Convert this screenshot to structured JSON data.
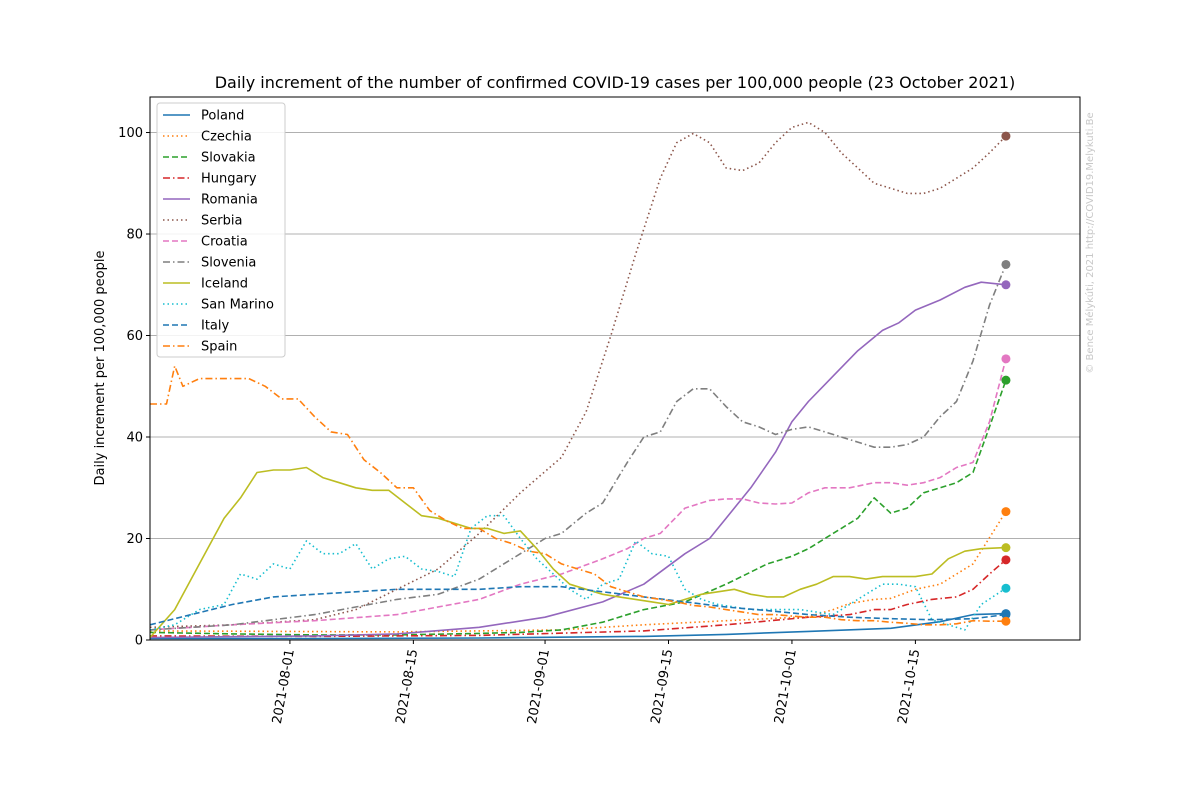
{
  "chart_data": {
    "type": "line",
    "title": "Daily increment of the number of confirmed COVID-19 cases per 100,000 people (23 October 2021)",
    "xlabel": "",
    "ylabel": "Daily increment per 100,000 people",
    "watermark": "© Bence Mélykúti, 2021  http://COVID19.Melykuti.Be",
    "ylim": [
      0,
      107
    ],
    "yticks": [
      0,
      20,
      40,
      60,
      80,
      100
    ],
    "ytick_labels": [
      "0",
      "20",
      "40",
      "60",
      "80",
      "100"
    ],
    "x_start": "2021-07-15",
    "x_end": "2021-10-23",
    "x_range_days": [
      0,
      113
    ],
    "xticks": [
      17,
      32,
      48,
      63,
      78,
      93
    ],
    "xtick_labels": [
      "2021-08-01",
      "2021-08-15",
      "2021-09-01",
      "2021-09-15",
      "2021-10-01",
      "2021-10-15"
    ],
    "grid": "horizontal",
    "legend_position": "upper-left",
    "series": [
      {
        "name": "Poland",
        "color": "#1f77b4",
        "style": "solid",
        "x": [
          0,
          20,
          40,
          60,
          70,
          80,
          90,
          96,
          100,
          104
        ],
        "values": [
          0.3,
          0.3,
          0.4,
          0.7,
          1.1,
          1.7,
          2.3,
          3.6,
          5.0,
          5.2
        ]
      },
      {
        "name": "Czechia",
        "color": "#ff7f0e",
        "style": "dotted",
        "x": [
          0,
          30,
          50,
          60,
          70,
          80,
          83,
          85,
          88,
          90,
          93,
          96,
          100,
          104
        ],
        "values": [
          1.8,
          1.6,
          2.0,
          3.0,
          3.8,
          4.6,
          6.0,
          7.2,
          8.0,
          8.2,
          10.0,
          11.0,
          15.0,
          25.3
        ]
      },
      {
        "name": "Slovakia",
        "color": "#2ca02c",
        "style": "dashed",
        "x": [
          0,
          10,
          20,
          30,
          40,
          45,
          50,
          55,
          60,
          65,
          70,
          75,
          78,
          80,
          82,
          84,
          86,
          88,
          90,
          92,
          94,
          96,
          98,
          100,
          102,
          104
        ],
        "values": [
          1.5,
          1.2,
          1.0,
          1.0,
          1.3,
          1.5,
          2.0,
          3.5,
          6.0,
          7.5,
          11.0,
          15.0,
          16.5,
          18.0,
          20.0,
          22.0,
          24.0,
          28.0,
          25.0,
          26.0,
          29.0,
          30.0,
          31.0,
          33.0,
          42.0,
          51.2
        ]
      },
      {
        "name": "Hungary",
        "color": "#d62728",
        "style": "dashdot",
        "x": [
          0,
          20,
          40,
          60,
          70,
          80,
          85,
          88,
          90,
          92,
          95,
          98,
          100,
          102,
          104
        ],
        "values": [
          0.8,
          0.7,
          0.9,
          1.8,
          3.0,
          4.5,
          5.0,
          6.0,
          6.0,
          7.0,
          8.0,
          8.5,
          10.0,
          13.0,
          15.8
        ]
      },
      {
        "name": "Romania",
        "color": "#9467bd",
        "style": "solid",
        "x": [
          0,
          20,
          30,
          40,
          48,
          55,
          60,
          65,
          68,
          70,
          73,
          76,
          78,
          80,
          83,
          86,
          89,
          91,
          93,
          96,
          99,
          101,
          104
        ],
        "values": [
          0.5,
          0.8,
          1.2,
          2.5,
          4.5,
          7.5,
          11.0,
          17.0,
          20.0,
          24.0,
          30.0,
          37.0,
          43.0,
          47.0,
          52.0,
          57.0,
          61.0,
          62.5,
          65.0,
          67.0,
          69.5,
          70.5,
          70.0
        ]
      },
      {
        "name": "Serbia",
        "color": "#8c564b",
        "style": "dotted",
        "x": [
          0,
          10,
          20,
          25,
          30,
          35,
          40,
          45,
          50,
          53,
          56,
          59,
          62,
          64,
          66,
          68,
          70,
          72,
          74,
          76,
          78,
          80,
          82,
          84,
          86,
          88,
          90,
          92,
          94,
          96,
          98,
          100,
          102,
          104
        ],
        "values": [
          2.5,
          3.0,
          4.0,
          6.0,
          10.0,
          14.0,
          21.0,
          29.0,
          36.0,
          45.0,
          60.0,
          76.0,
          91.0,
          98.0,
          99.8,
          98.0,
          93.0,
          92.5,
          94.0,
          98.0,
          101.0,
          102.0,
          100.0,
          96.0,
          93.0,
          90.0,
          89.0,
          88.0,
          88.0,
          89.0,
          91.0,
          93.0,
          96.0,
          99.3
        ]
      },
      {
        "name": "Croatia",
        "color": "#e377c2",
        "style": "dashed",
        "x": [
          0,
          10,
          20,
          30,
          40,
          45,
          50,
          55,
          58,
          60,
          62,
          65,
          68,
          70,
          72,
          74,
          76,
          78,
          80,
          82,
          85,
          88,
          90,
          92,
          94,
          96,
          98,
          100,
          102,
          104
        ],
        "values": [
          2.0,
          3.0,
          3.8,
          5.0,
          8.0,
          11.0,
          13.0,
          16.0,
          18.0,
          20.0,
          21.0,
          26.0,
          27.5,
          27.8,
          27.8,
          27.0,
          26.8,
          27.0,
          29.0,
          30.0,
          30.0,
          31.0,
          31.0,
          30.5,
          31.0,
          32.0,
          34.0,
          35.0,
          43.0,
          55.4
        ]
      },
      {
        "name": "Slovenia",
        "color": "#7f7f7f",
        "style": "dashdot",
        "x": [
          0,
          10,
          20,
          30,
          35,
          40,
          45,
          48,
          50,
          53,
          55,
          58,
          60,
          62,
          64,
          66,
          68,
          70,
          72,
          74,
          76,
          78,
          80,
          82,
          84,
          86,
          88,
          90,
          92,
          94,
          96,
          98,
          100,
          102,
          104
        ],
        "values": [
          2.0,
          3.0,
          5.0,
          8.0,
          9.0,
          12.0,
          17.0,
          20.0,
          21.0,
          25.0,
          27.0,
          35.0,
          40.0,
          41.0,
          47.0,
          49.5,
          49.5,
          46.0,
          43.0,
          42.0,
          40.5,
          41.5,
          42.0,
          41.0,
          40.0,
          39.0,
          38.0,
          38.0,
          38.5,
          40.0,
          44.0,
          47.0,
          55.0,
          66.0,
          74.0
        ]
      },
      {
        "name": "Iceland",
        "color": "#bcbd22",
        "style": "solid",
        "x": [
          0,
          3,
          6,
          9,
          11,
          13,
          15,
          17,
          19,
          21,
          23,
          25,
          27,
          29,
          31,
          33,
          35,
          37,
          39,
          41,
          43,
          45,
          47,
          49,
          51,
          53,
          55,
          57,
          59,
          61,
          63,
          65,
          67,
          69,
          71,
          73,
          75,
          77,
          79,
          81,
          83,
          85,
          87,
          89,
          91,
          93,
          95,
          97,
          99,
          101,
          104
        ],
        "values": [
          0.5,
          6.0,
          15.0,
          24.0,
          28.0,
          33.0,
          33.5,
          33.5,
          34.0,
          32.0,
          31.0,
          30.0,
          29.5,
          29.5,
          27.0,
          24.5,
          24.0,
          23.0,
          22.0,
          22.0,
          21.0,
          21.5,
          18.0,
          14.0,
          11.0,
          10.0,
          9.0,
          8.5,
          8.0,
          7.5,
          7.0,
          8.0,
          9.0,
          9.5,
          10.0,
          9.0,
          8.5,
          8.5,
          10.0,
          11.0,
          12.5,
          12.5,
          12.0,
          12.5,
          12.5,
          12.5,
          13.0,
          16.0,
          17.5,
          18.0,
          18.2
        ]
      },
      {
        "name": "San Marino",
        "color": "#17becf",
        "style": "dotted",
        "x": [
          0,
          3,
          6,
          9,
          11,
          13,
          15,
          17,
          19,
          21,
          23,
          25,
          27,
          29,
          31,
          33,
          35,
          37,
          39,
          41,
          43,
          45,
          47,
          49,
          51,
          53,
          55,
          57,
          59,
          61,
          63,
          65,
          67,
          69,
          71,
          73,
          75,
          77,
          79,
          81,
          83,
          85,
          87,
          89,
          91,
          93,
          95,
          97,
          99,
          101,
          104
        ],
        "values": [
          2.0,
          3.0,
          6.0,
          7.0,
          13.0,
          12.0,
          15.0,
          14.0,
          19.5,
          17.0,
          17.0,
          19.0,
          14.0,
          16.0,
          16.5,
          14.0,
          13.5,
          12.5,
          22.0,
          24.5,
          24.5,
          20.0,
          16.0,
          13.0,
          10.0,
          8.0,
          11.0,
          12.0,
          19.5,
          17.0,
          16.5,
          10.0,
          8.0,
          7.0,
          6.5,
          6.0,
          6.0,
          6.0,
          6.0,
          5.5,
          5.0,
          7.0,
          9.0,
          11.0,
          11.0,
          10.5,
          4.0,
          3.0,
          2.0,
          7.0,
          10.2
        ]
      },
      {
        "name": "Italy",
        "color": "#1f77b4",
        "style": "dashed",
        "x": [
          0,
          5,
          10,
          15,
          20,
          25,
          30,
          35,
          40,
          45,
          50,
          55,
          60,
          65,
          70,
          75,
          80,
          85,
          90,
          95,
          100,
          104
        ],
        "values": [
          3.0,
          5.0,
          7.0,
          8.5,
          9.0,
          9.5,
          10.0,
          10.0,
          10.0,
          10.5,
          10.5,
          9.5,
          8.5,
          7.5,
          6.5,
          5.8,
          5.0,
          4.5,
          4.2,
          4.0,
          4.2,
          5.0
        ]
      },
      {
        "name": "Spain",
        "color": "#ff7f0e",
        "style": "dashdot",
        "x": [
          0,
          2,
          3,
          4,
          6,
          9,
          12,
          14,
          16,
          18,
          20,
          22,
          24,
          26,
          28,
          30,
          32,
          34,
          36,
          38,
          40,
          42,
          44,
          46,
          48,
          50,
          52,
          54,
          56,
          58,
          60,
          62,
          64,
          66,
          68,
          70,
          72,
          74,
          76,
          78,
          80,
          82,
          84,
          86,
          88,
          90,
          92,
          94,
          96,
          98,
          100,
          102,
          104
        ],
        "values": [
          46.5,
          46.5,
          54.0,
          50.0,
          51.5,
          51.5,
          51.5,
          50.0,
          47.5,
          47.5,
          44.0,
          41.0,
          40.5,
          35.5,
          33.0,
          30.0,
          30.0,
          25.5,
          23.5,
          22.0,
          22.0,
          20.0,
          19.0,
          17.5,
          17.0,
          15.0,
          14.0,
          13.0,
          10.5,
          9.5,
          8.5,
          8.0,
          7.5,
          6.8,
          6.5,
          6.0,
          5.5,
          5.0,
          5.0,
          4.7,
          4.5,
          4.5,
          4.0,
          3.8,
          3.8,
          3.5,
          3.3,
          3.0,
          3.0,
          3.2,
          3.8,
          3.7,
          3.7
        ]
      }
    ]
  }
}
